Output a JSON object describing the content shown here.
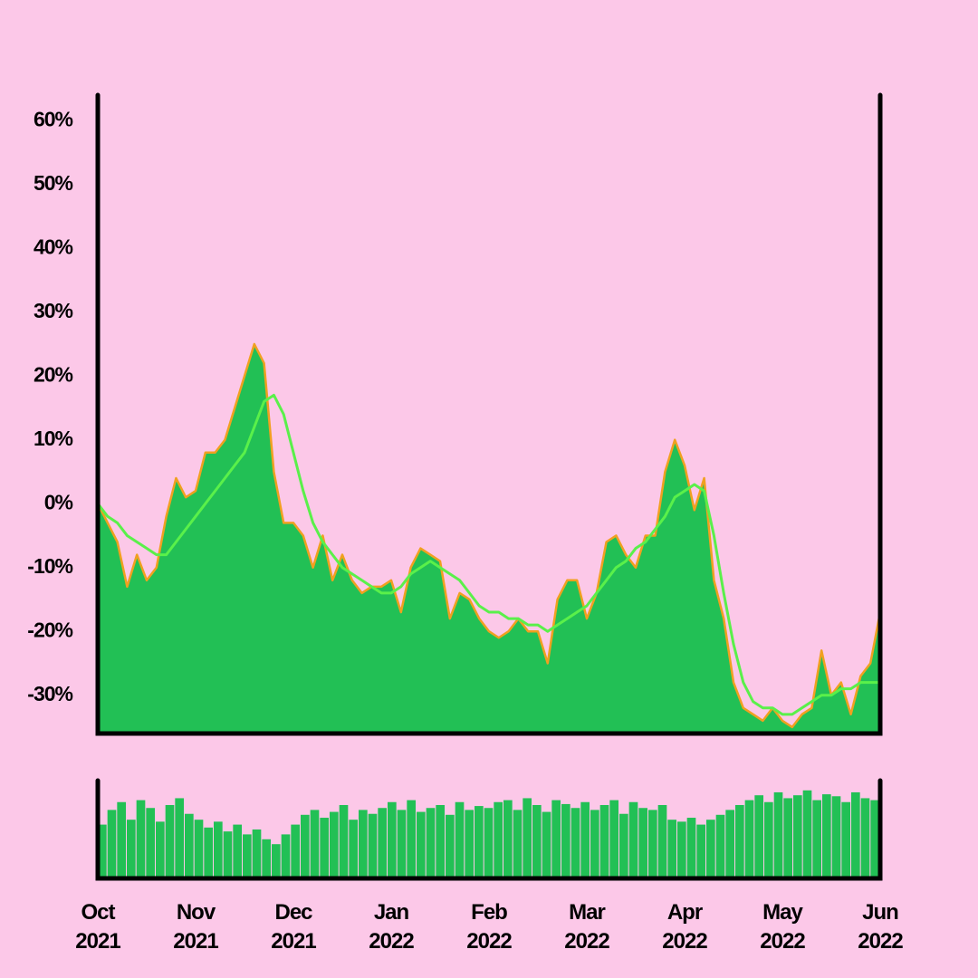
{
  "chart_data": [
    {
      "type": "area",
      "categories": [
        "Oct 2021",
        null,
        null,
        null,
        null,
        null,
        null,
        null,
        null,
        null,
        "Nov 2021",
        null,
        null,
        null,
        null,
        null,
        null,
        null,
        null,
        null,
        "Dec 2021",
        null,
        null,
        null,
        null,
        null,
        null,
        null,
        null,
        null,
        "Jan 2022",
        null,
        null,
        null,
        null,
        null,
        null,
        null,
        null,
        null,
        "Feb 2022",
        null,
        null,
        null,
        null,
        null,
        null,
        null,
        null,
        null,
        "Mar 2022",
        null,
        null,
        null,
        null,
        null,
        null,
        null,
        null,
        null,
        "Apr 2022",
        null,
        null,
        null,
        null,
        null,
        null,
        null,
        null,
        null,
        "May 2022",
        null,
        null,
        null,
        null,
        null,
        null,
        null,
        null,
        null,
        "Jun 2022"
      ],
      "series": [
        {
          "type": "area",
          "color": "#22c055",
          "edge_color": "#f0a020",
          "values": [
            0,
            -3,
            -6,
            -13,
            -8,
            -12,
            -10,
            -2,
            4,
            1,
            2,
            8,
            8,
            10,
            15,
            20,
            25,
            22,
            5,
            -3,
            -3,
            -5,
            -10,
            -5,
            -12,
            -8,
            -12,
            -14,
            -13,
            -13,
            -12,
            -17,
            -10,
            -7,
            -8,
            -9,
            -18,
            -14,
            -15,
            -18,
            -20,
            -21,
            -20,
            -18,
            -20,
            -20,
            -25,
            -15,
            -12,
            -12,
            -18,
            -14,
            -6,
            -5,
            -8,
            -10,
            -5,
            -5,
            5,
            10,
            6,
            -1,
            4,
            -12,
            -18,
            -28,
            -32,
            -33,
            -34,
            -32,
            -34,
            -35,
            -33,
            -32,
            -23,
            -30,
            -28,
            -33,
            -27,
            -25,
            -17
          ]
        },
        {
          "type": "line",
          "color": "#5af04a",
          "values": [
            0,
            -2,
            -3,
            -5,
            -6,
            -7,
            -8,
            -8,
            -6,
            -4,
            -2,
            0,
            2,
            4,
            6,
            8,
            12,
            16,
            17,
            14,
            8,
            2,
            -3,
            -6,
            -8,
            -10,
            -11,
            -12,
            -13,
            -14,
            -14,
            -13,
            -11,
            -10,
            -9,
            -10,
            -11,
            -12,
            -14,
            -16,
            -17,
            -17,
            -18,
            -18,
            -19,
            -19,
            -20,
            -19,
            -18,
            -17,
            -16,
            -14,
            -12,
            -10,
            -9,
            -7,
            -6,
            -4,
            -2,
            1,
            2,
            3,
            2,
            -5,
            -14,
            -22,
            -28,
            -31,
            -32,
            -32,
            -33,
            -33,
            -32,
            -31,
            -30,
            -30,
            -29,
            -29,
            -28,
            -28,
            -28
          ]
        }
      ],
      "ylim": [
        -36,
        64
      ],
      "yticks": [
        {
          "value": -30,
          "label": "-30%"
        },
        {
          "value": -20,
          "label": "-20%"
        },
        {
          "value": -10,
          "label": "-10%"
        },
        {
          "value": 0,
          "label": "0%"
        },
        {
          "value": 10,
          "label": "10%"
        },
        {
          "value": 20,
          "label": "20%"
        },
        {
          "value": 30,
          "label": "30%"
        },
        {
          "value": 40,
          "label": "40%"
        },
        {
          "value": 50,
          "label": "50%"
        },
        {
          "value": 60,
          "label": "60%"
        }
      ]
    },
    {
      "type": "bar",
      "color": "#22c055",
      "values": [
        55,
        70,
        78,
        60,
        80,
        72,
        58,
        75,
        82,
        66,
        60,
        52,
        58,
        48,
        55,
        45,
        50,
        40,
        35,
        45,
        55,
        65,
        70,
        62,
        68,
        75,
        60,
        70,
        66,
        72,
        78,
        70,
        80,
        68,
        72,
        75,
        65,
        78,
        70,
        74,
        72,
        78,
        80,
        70,
        82,
        75,
        68,
        80,
        76,
        72,
        78,
        70,
        75,
        80,
        66,
        78,
        72,
        70,
        75,
        60,
        58,
        62,
        55,
        60,
        65,
        70,
        75,
        80,
        85,
        78,
        88,
        82,
        85,
        90,
        80,
        86,
        84,
        78,
        88,
        82,
        80
      ],
      "ylim": [
        0,
        100
      ]
    }
  ]
}
